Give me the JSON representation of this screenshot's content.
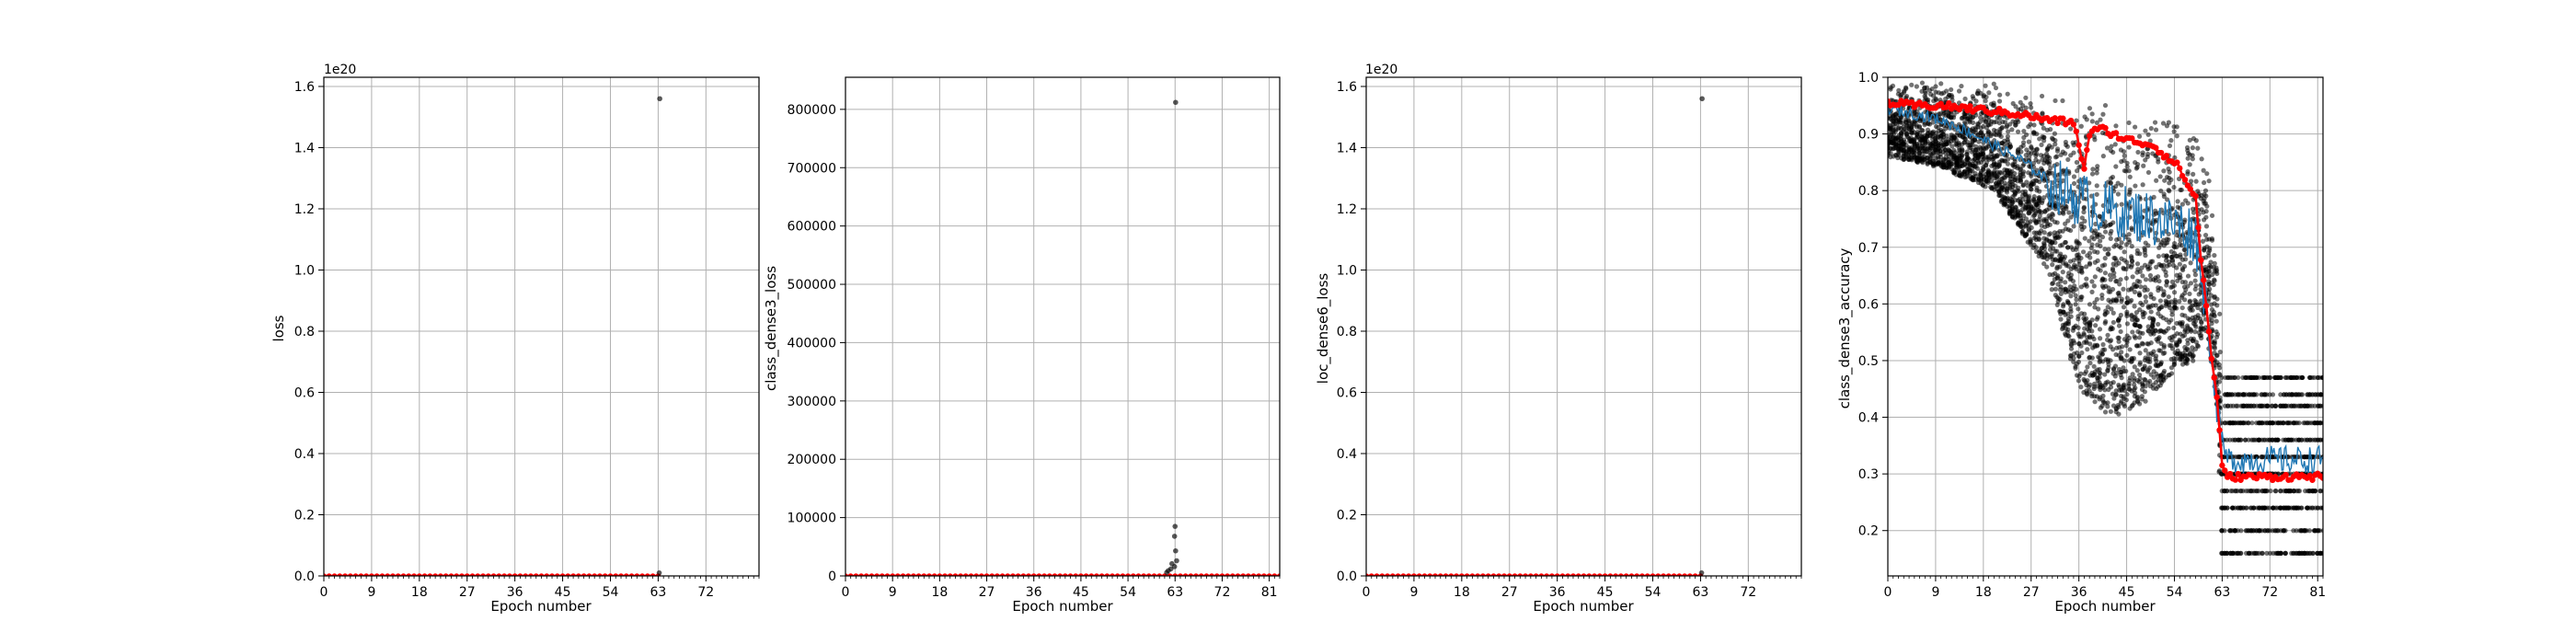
{
  "figure": {
    "background": "#ffffff"
  },
  "colors": {
    "mean": "#1f77b4",
    "median": "#ff0000",
    "points": "#000000",
    "grid": "#b0b0b0"
  },
  "chart_data": [
    {
      "id": "loss",
      "type": "scatter",
      "title": "",
      "xlabel": "Epoch number",
      "ylabel": "loss",
      "offset_label": "1e20",
      "xlim": [
        0,
        82
      ],
      "ylim": [
        0,
        1.63
      ],
      "xticks": [
        0,
        9,
        18,
        27,
        36,
        45,
        54,
        63,
        72
      ],
      "xtick_labels": [
        "0",
        "9",
        "18",
        "27",
        "36",
        "45",
        "54",
        "63",
        "72"
      ],
      "yticks": [
        0,
        0.2,
        0.4,
        0.6,
        0.8,
        1.0,
        1.2,
        1.4,
        1.6
      ],
      "ytick_labels": [
        "0.0",
        "0.2",
        "0.4",
        "0.6",
        "0.8",
        "1.0",
        "1.2",
        "1.4",
        "1.6"
      ],
      "grid": true,
      "median_series": {
        "x_range": [
          0,
          63
        ],
        "value": 0.0
      },
      "outliers": [
        {
          "x": 63.3,
          "y": 1.56
        },
        {
          "x": 63.2,
          "y": 0.01
        }
      ]
    },
    {
      "id": "class_dense3_loss",
      "type": "scatter",
      "title": "",
      "xlabel": "Epoch number",
      "ylabel": "class_dense3_loss",
      "offset_label": "",
      "xlim": [
        0,
        83
      ],
      "ylim": [
        0,
        855000
      ],
      "xticks": [
        0,
        9,
        18,
        27,
        36,
        45,
        54,
        63,
        72,
        81
      ],
      "xtick_labels": [
        "0",
        "9",
        "18",
        "27",
        "36",
        "45",
        "54",
        "63",
        "72",
        "81"
      ],
      "yticks": [
        0,
        100000,
        200000,
        300000,
        400000,
        500000,
        600000,
        700000,
        800000
      ],
      "ytick_labels": [
        "0",
        "100000",
        "200000",
        "300000",
        "400000",
        "500000",
        "600000",
        "700000",
        "800000"
      ],
      "grid": true,
      "median_series": {
        "x_range": [
          0,
          83
        ],
        "value": 0
      },
      "outliers": [
        {
          "x": 63.1,
          "y": 812000
        },
        {
          "x": 63.0,
          "y": 85000
        },
        {
          "x": 62.9,
          "y": 68000
        },
        {
          "x": 63.1,
          "y": 43000
        },
        {
          "x": 62.4,
          "y": 21000
        },
        {
          "x": 62.9,
          "y": 16000
        },
        {
          "x": 62.2,
          "y": 12000
        },
        {
          "x": 61.7,
          "y": 9000
        },
        {
          "x": 61.4,
          "y": 6000
        },
        {
          "x": 63.3,
          "y": 26000
        }
      ]
    },
    {
      "id": "loc_dense6_loss",
      "type": "scatter",
      "title": "",
      "xlabel": "Epoch number",
      "ylabel": "loc_dense6_loss",
      "offset_label": "1e20",
      "xlim": [
        0,
        82
      ],
      "ylim": [
        0,
        1.63
      ],
      "xticks": [
        0,
        9,
        18,
        27,
        36,
        45,
        54,
        63,
        72
      ],
      "xtick_labels": [
        "0",
        "9",
        "18",
        "27",
        "36",
        "45",
        "54",
        "63",
        "72"
      ],
      "yticks": [
        0,
        0.2,
        0.4,
        0.6,
        0.8,
        1.0,
        1.2,
        1.4,
        1.6
      ],
      "ytick_labels": [
        "0.0",
        "0.2",
        "0.4",
        "0.6",
        "0.8",
        "1.0",
        "1.2",
        "1.4",
        "1.6"
      ],
      "grid": true,
      "median_series": {
        "x_range": [
          0,
          63
        ],
        "value": 0.0
      },
      "outliers": [
        {
          "x": 63.3,
          "y": 1.56
        },
        {
          "x": 63.2,
          "y": 0.01
        }
      ]
    },
    {
      "id": "class_dense3_accuracy",
      "type": "scatter",
      "title": "",
      "xlabel": "Epoch number",
      "ylabel": "class_dense3_accuracy",
      "offset_label": "",
      "xlim": [
        0,
        82
      ],
      "ylim": [
        0.12,
        1.0
      ],
      "xticks": [
        0,
        9,
        18,
        27,
        36,
        45,
        54,
        63,
        72,
        81
      ],
      "xtick_labels": [
        "0",
        "9",
        "18",
        "27",
        "36",
        "45",
        "54",
        "63",
        "72",
        "81"
      ],
      "yticks": [
        0.2,
        0.3,
        0.4,
        0.5,
        0.6,
        0.7,
        0.8,
        0.9,
        1.0
      ],
      "ytick_labels": [
        "0.2",
        "0.3",
        "0.4",
        "0.5",
        "0.6",
        "0.7",
        "0.8",
        "0.9",
        "1.0"
      ],
      "grid": true,
      "mean_series": {
        "x": [
          0,
          5,
          10,
          15,
          20,
          25,
          30,
          35,
          40,
          45,
          50,
          55,
          58,
          60,
          61,
          62,
          63,
          64,
          70,
          76,
          82
        ],
        "y": [
          0.945,
          0.935,
          0.925,
          0.905,
          0.88,
          0.855,
          0.82,
          0.79,
          0.77,
          0.76,
          0.75,
          0.74,
          0.72,
          0.6,
          0.5,
          0.42,
          0.35,
          0.325,
          0.325,
          0.325,
          0.325
        ]
      },
      "median_series": {
        "x": [
          0,
          5,
          10,
          15,
          20,
          25,
          30,
          35,
          37,
          38,
          40,
          45,
          50,
          55,
          57,
          58,
          59,
          60,
          61,
          62,
          63,
          64,
          70,
          76,
          82
        ],
        "y": [
          0.955,
          0.95,
          0.95,
          0.945,
          0.94,
          0.935,
          0.925,
          0.92,
          0.84,
          0.9,
          0.91,
          0.89,
          0.88,
          0.84,
          0.8,
          0.79,
          0.68,
          0.6,
          0.5,
          0.44,
          0.31,
          0.295,
          0.295,
          0.295,
          0.295
        ]
      },
      "point_cloud": {
        "x": [
          0,
          10,
          20,
          30,
          36,
          42,
          48,
          54,
          58,
          60,
          62,
          63,
          64,
          82
        ],
        "lower": [
          0.86,
          0.84,
          0.8,
          0.66,
          0.45,
          0.4,
          0.42,
          0.48,
          0.5,
          0.55,
          0.42,
          0.16,
          0.16,
          0.16
        ],
        "upper": [
          0.995,
          0.995,
          0.99,
          0.975,
          0.97,
          0.96,
          0.95,
          0.94,
          0.92,
          0.9,
          0.7,
          0.47,
          0.47,
          0.47
        ]
      }
    }
  ]
}
